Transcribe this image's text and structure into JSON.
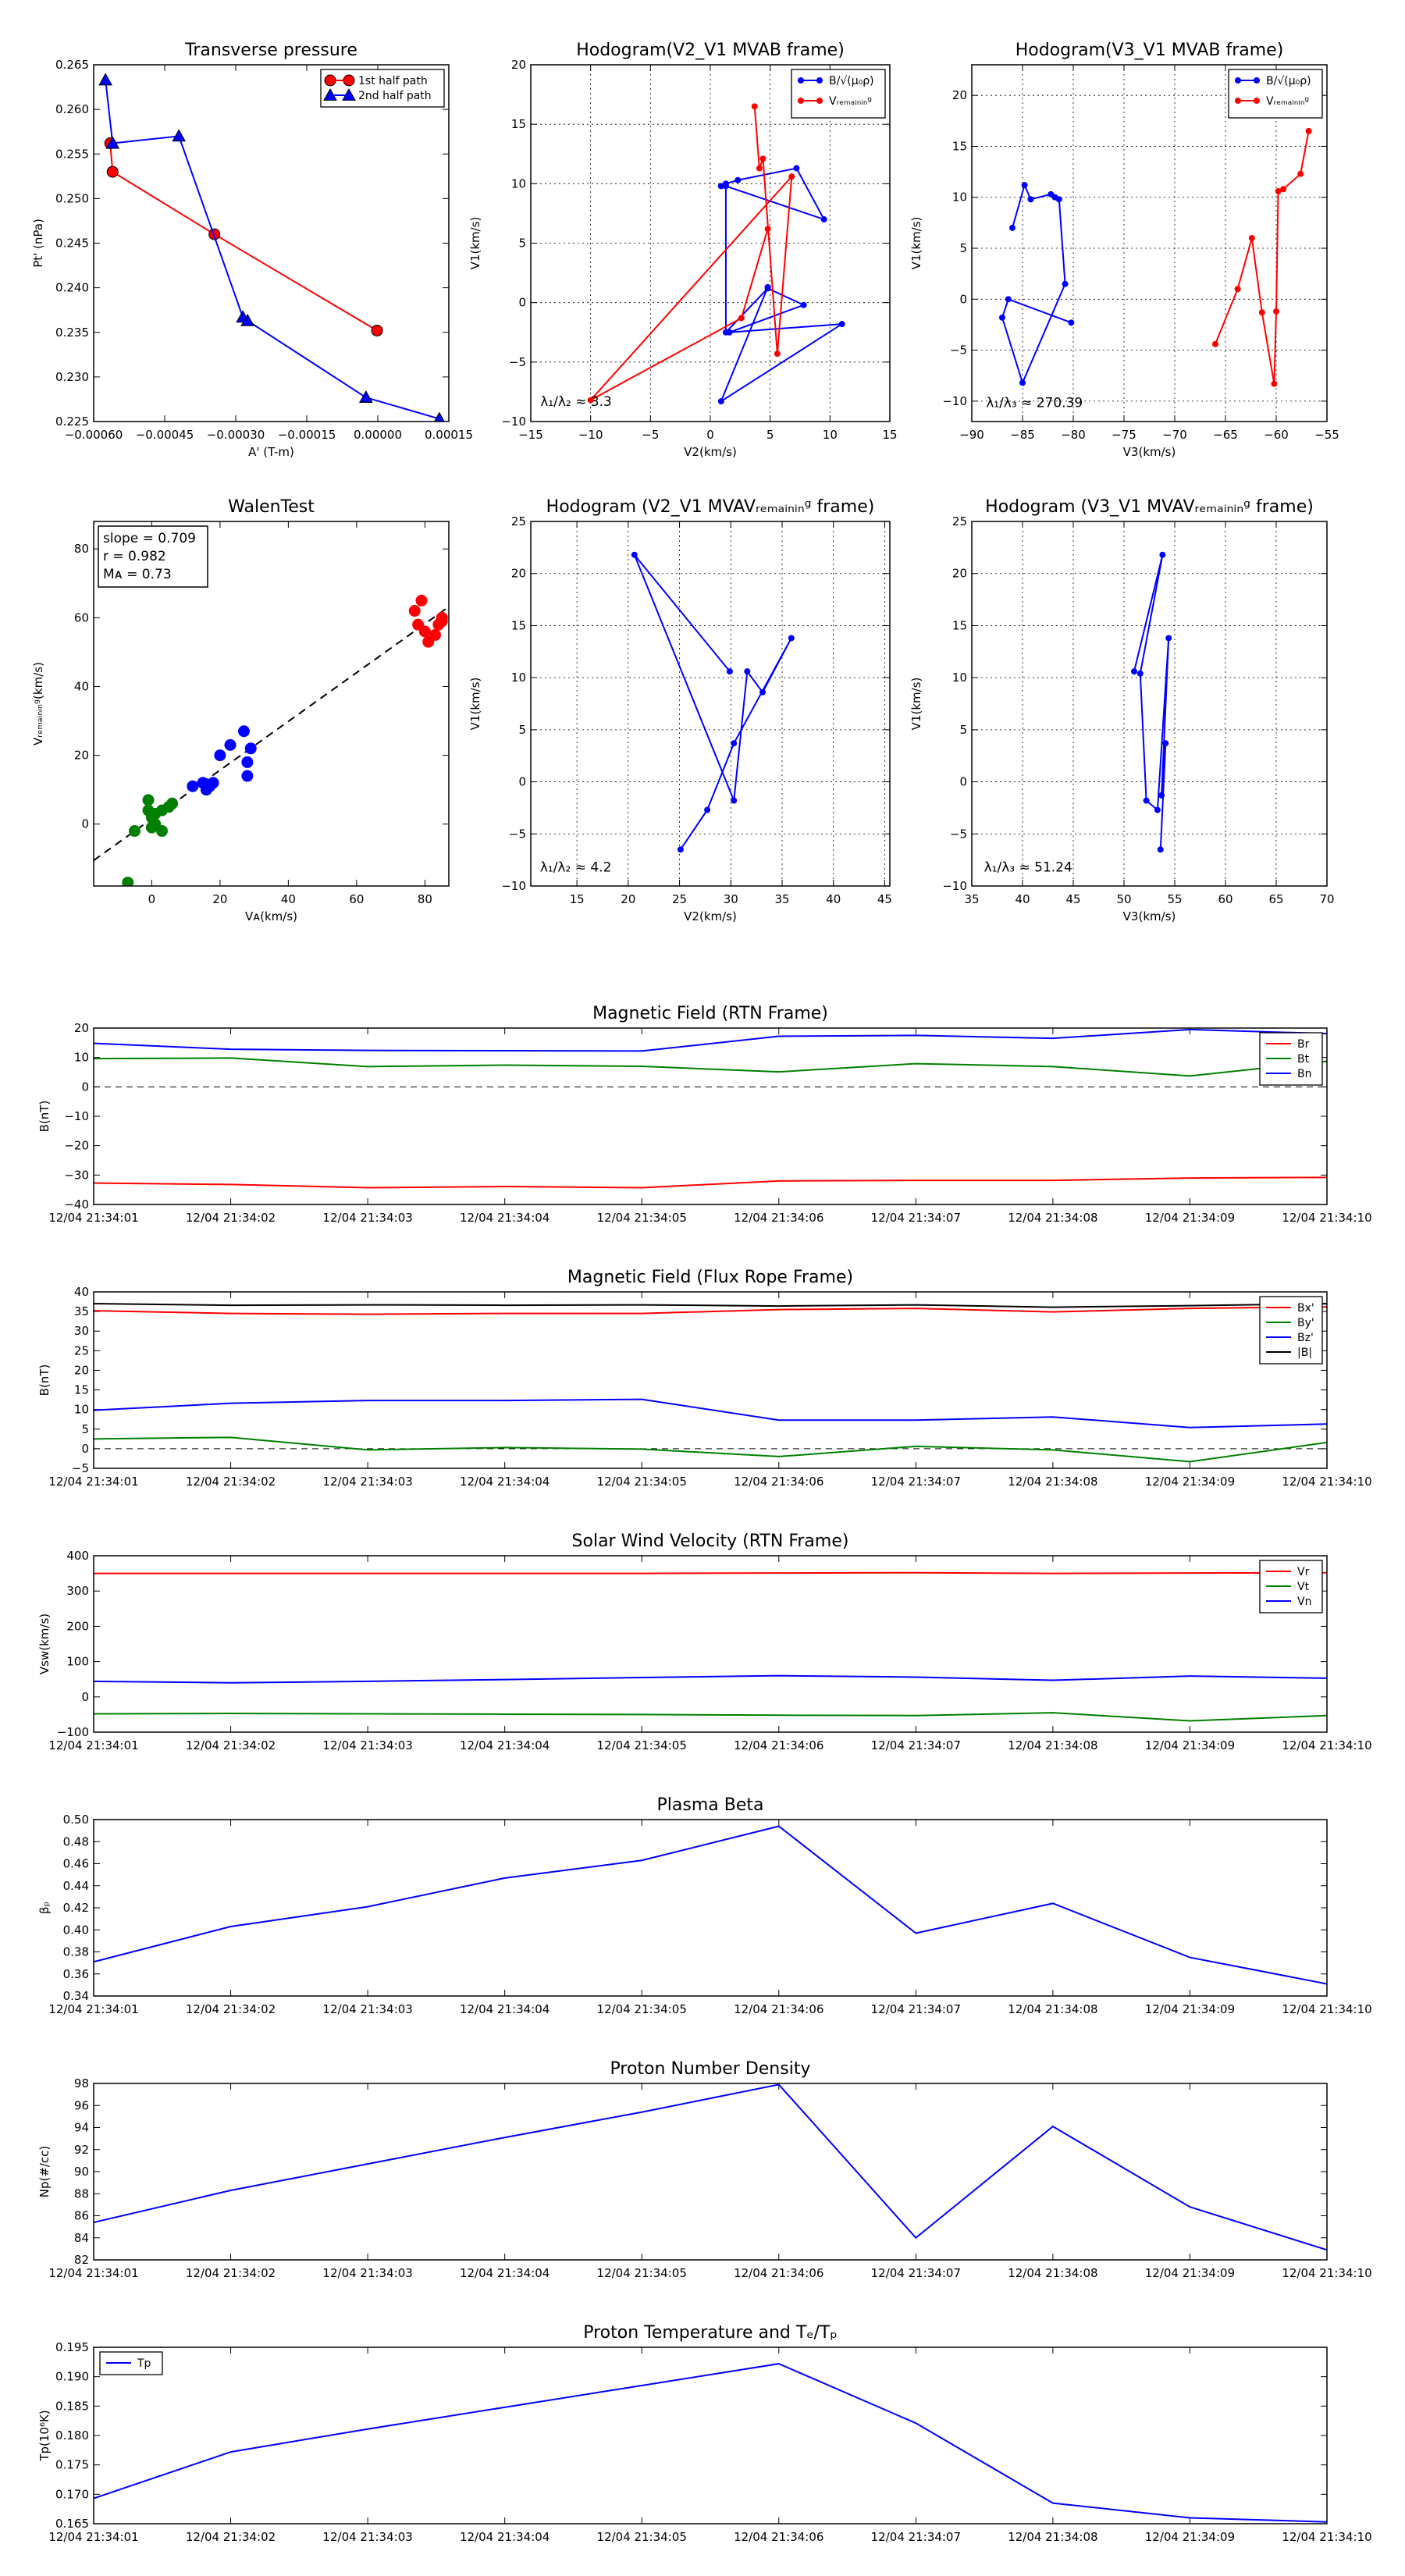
{
  "times": [
    "12/04 21:34:01",
    "12/04 21:34:02",
    "12/04 21:34:03",
    "12/04 21:34:04",
    "12/04 21:34:05",
    "12/04 21:34:06",
    "12/04 21:34:07",
    "12/04 21:34:08",
    "12/04 21:34:09",
    "12/04 21:34:10"
  ],
  "colors": {
    "red": "#ff0000",
    "green": "#008000",
    "blue": "#0000ff",
    "black": "#000000",
    "redfill": "#ee2222"
  },
  "chart_data": [
    {
      "id": "pt",
      "type": "line",
      "title": "Transverse pressure",
      "xlabel": "A' (T-m)",
      "ylabel": "Pt' (nPa)",
      "xlim": [
        -0.0006,
        0.00015
      ],
      "ylim": [
        0.225,
        0.265
      ],
      "xticks": [
        -0.0006,
        -0.00045,
        -0.0003,
        -0.00015,
        0.0,
        0.00015
      ],
      "xticklabels": [
        "−0.00060",
        "−0.00045",
        "−0.00030",
        "−0.00015",
        "0.00000",
        "0.00015"
      ],
      "yticks": [
        0.225,
        0.23,
        0.235,
        0.24,
        0.245,
        0.25,
        0.255,
        0.26,
        0.265
      ],
      "yticklabels": [
        "0.225",
        "0.230",
        "0.235",
        "0.240",
        "0.245",
        "0.250",
        "0.255",
        "0.260",
        "0.265"
      ],
      "grid": false,
      "legend_position": "top-right",
      "series": [
        {
          "name": "1st half path",
          "color": "#ff0000",
          "marker": "circle",
          "x": [
            -0.000565,
            -0.00056,
            -0.000345,
            -1.5e-06
          ],
          "y": [
            0.2562,
            0.253,
            0.246,
            0.2352
          ]
        },
        {
          "name": "2nd half path",
          "color": "#0000ff",
          "marker": "triangle",
          "x": [
            -0.000575,
            -0.00056,
            -0.00042,
            -0.000285,
            -0.000275,
            -2.5e-05,
            0.00013
          ],
          "y": [
            0.2633,
            0.2562,
            0.257,
            0.2367,
            0.2363,
            0.2277,
            0.2253
          ]
        }
      ]
    },
    {
      "id": "h1",
      "type": "line",
      "title": "Hodogram(V2_V1 MVAB frame)",
      "xlabel": "V2(km/s)",
      "ylabel": "V1(km/s)",
      "xlim": [
        -15,
        15
      ],
      "ylim": [
        -10,
        20
      ],
      "xticks": [
        -15,
        -10,
        -5,
        0,
        5,
        10,
        15
      ],
      "xticklabels": [
        "−15",
        "−10",
        "−5",
        "0",
        "5",
        "10",
        "15"
      ],
      "yticks": [
        -10,
        -5,
        0,
        5,
        10,
        15,
        20
      ],
      "yticklabels": [
        "−10",
        "−5",
        "0",
        "5",
        "10",
        "15",
        "20"
      ],
      "grid": true,
      "legend_position": "top-right",
      "annotation": {
        "text": "λ₁/λ₂ ≈ 3.3",
        "x": -14.2,
        "y": -8.7
      },
      "series": [
        {
          "name": "B/√(μ₀ρ)",
          "color": "#0000ff",
          "marker": "dot",
          "x": [
            0.9,
            1.3,
            2.3,
            7.2,
            9.5,
            1.3,
            1.3,
            4.8,
            7.8,
            1.6,
            11.0,
            0.9,
            4.8
          ],
          "y": [
            9.8,
            10.0,
            10.3,
            11.3,
            7.0,
            9.8,
            -2.5,
            1.2,
            -0.2,
            -2.5,
            -1.8,
            -8.3,
            1.3
          ]
        },
        {
          "name": "Vᵣₑₘₐᵢₙᵢₙᵍ",
          "color": "#ff0000",
          "marker": "dot",
          "x": [
            3.7,
            4.1,
            4.4,
            5.6,
            6.8,
            -10.0,
            2.6,
            4.8
          ],
          "y": [
            16.5,
            11.3,
            12.1,
            -4.3,
            10.6,
            -8.2,
            -1.3,
            6.2
          ]
        }
      ]
    },
    {
      "id": "h2",
      "type": "line",
      "title": "Hodogram(V3_V1 MVAB frame)",
      "xlabel": "V3(km/s)",
      "ylabel": "V1(km/s)",
      "xlim": [
        -90,
        -55
      ],
      "ylim": [
        -12,
        23
      ],
      "xticks": [
        -90,
        -85,
        -80,
        -75,
        -70,
        -65,
        -60,
        -55
      ],
      "xticklabels": [
        "−90",
        "−85",
        "−80",
        "−75",
        "−70",
        "−65",
        "−60",
        "−55"
      ],
      "yticks": [
        -10,
        -5,
        0,
        5,
        10,
        15,
        20
      ],
      "yticklabels": [
        "−10",
        "−5",
        "0",
        "5",
        "10",
        "15",
        "20"
      ],
      "grid": true,
      "legend_position": "top-right",
      "annotation": {
        "text": "λ₁/λ₃ ≈ 270.39",
        "x": -88.6,
        "y": -10.6
      },
      "series": [
        {
          "name": "B/√(μ₀ρ)",
          "color": "#0000ff",
          "marker": "dot",
          "x": [
            -86.0,
            -84.8,
            -84.2,
            -82.2,
            -81.8,
            -81.4,
            -80.8,
            -85.0,
            -87.0,
            -86.4,
            -80.2
          ],
          "y": [
            7.0,
            11.2,
            9.8,
            10.3,
            10.0,
            9.8,
            1.5,
            -8.2,
            -1.8,
            0.0,
            -2.3
          ]
        },
        {
          "name": "Vᵣₑₘₐᵢₙᵢₙᵍ",
          "color": "#ff0000",
          "marker": "dot",
          "x": [
            -56.8,
            -57.6,
            -59.3,
            -59.8,
            -60.0,
            -60.2,
            -61.4,
            -62.4,
            -63.8,
            -66.0
          ],
          "y": [
            16.5,
            12.3,
            10.8,
            10.6,
            -1.2,
            -8.3,
            -1.3,
            6.0,
            1.0,
            -4.4
          ]
        }
      ]
    },
    {
      "id": "wt",
      "type": "scatter",
      "title": "WalenTest",
      "xlabel": "Vᴀ(km/s)",
      "ylabel": "Vᵣₑₘₐᵢₙᵢₙᵍ(km/s)",
      "xlim": [
        -17,
        87
      ],
      "ylim": [
        -18,
        88
      ],
      "xticks": [
        0,
        20,
        40,
        60,
        80
      ],
      "xticklabels": [
        "0",
        "20",
        "40",
        "60",
        "80"
      ],
      "yticks": [
        0,
        20,
        40,
        60,
        80
      ],
      "yticklabels": [
        "0",
        "20",
        "40",
        "60",
        "80"
      ],
      "grid": false,
      "stats": [
        "slope = 0.709",
        "r = 0.982",
        "Mᴀ = 0.73"
      ],
      "fit": {
        "slope": 0.709,
        "intercept": 1.5
      },
      "series": [
        {
          "color": "#008000",
          "x": [
            -7,
            -5,
            -1,
            -1,
            0,
            0,
            1,
            1,
            3,
            3,
            5,
            6
          ],
          "y": [
            -17,
            -2,
            7,
            4,
            2,
            -1,
            0,
            3,
            -2,
            4,
            5,
            6
          ]
        },
        {
          "color": "#0000ff",
          "x": [
            12,
            15,
            16,
            17,
            18,
            20,
            23,
            27,
            28,
            28,
            29
          ],
          "y": [
            11,
            12,
            10,
            11,
            12,
            20,
            23,
            27,
            18,
            14,
            22
          ]
        },
        {
          "color": "#ff0000",
          "x": [
            77,
            78,
            79,
            80,
            81,
            83,
            84,
            85,
            85
          ],
          "y": [
            62,
            58,
            65,
            56,
            53,
            55,
            58,
            60,
            59
          ]
        }
      ]
    },
    {
      "id": "h3",
      "type": "line",
      "title": "Hodogram (V2_V1 MVAVᵣₑₘₐᵢₙᵢₙᵍ frame)",
      "xlabel": "V2(km/s)",
      "ylabel": "V1(km/s)",
      "xlim": [
        10.5,
        45.5
      ],
      "ylim": [
        -10,
        25
      ],
      "xticks": [
        15,
        20,
        25,
        30,
        35,
        40,
        45
      ],
      "xticklabels": [
        "15",
        "20",
        "25",
        "30",
        "35",
        "40",
        "45"
      ],
      "yticks": [
        -10,
        -5,
        0,
        5,
        10,
        15,
        20,
        25
      ],
      "yticklabels": [
        "−10",
        "−5",
        "0",
        "5",
        "10",
        "15",
        "20",
        "25"
      ],
      "grid": true,
      "legend_position": "none",
      "annotation": {
        "text": "λ₁/λ₂ ≈ 4.2",
        "x": 11.4,
        "y": -8.6
      },
      "series": [
        {
          "color": "#0000ff",
          "marker": "dot",
          "x": [
            29.9,
            20.6,
            30.3,
            31.6,
            33.1,
            35.9,
            30.3,
            27.7,
            25.1
          ],
          "y": [
            10.6,
            21.8,
            -1.8,
            10.6,
            8.6,
            13.8,
            3.7,
            -2.7,
            -6.5
          ]
        }
      ]
    },
    {
      "id": "h4",
      "type": "line",
      "title": "Hodogram (V3_V1 MVAVᵣₑₘₐᵢₙᵢₙᵍ frame)",
      "xlabel": "V3(km/s)",
      "ylabel": "V1(km/s)",
      "xlim": [
        35,
        70
      ],
      "ylim": [
        -10,
        25
      ],
      "xticks": [
        35,
        40,
        45,
        50,
        55,
        60,
        65,
        70
      ],
      "xticklabels": [
        "35",
        "40",
        "45",
        "50",
        "55",
        "60",
        "65",
        "70"
      ],
      "yticks": [
        -10,
        -5,
        0,
        5,
        10,
        15,
        20,
        25
      ],
      "yticklabels": [
        "−10",
        "−5",
        "0",
        "5",
        "10",
        "15",
        "20",
        "25"
      ],
      "grid": true,
      "legend_position": "none",
      "annotation": {
        "text": "λ₁/λ₃ ≈ 51.24",
        "x": 36.2,
        "y": -8.6
      },
      "series": [
        {
          "color": "#0000ff",
          "marker": "dot",
          "x": [
            51.0,
            53.8,
            51.6,
            52.2,
            53.3,
            54.4,
            53.7,
            54.1,
            53.6
          ],
          "y": [
            10.6,
            21.8,
            10.4,
            -1.8,
            -2.7,
            13.8,
            -1.3,
            3.7,
            -6.5
          ]
        }
      ]
    },
    {
      "id": "brtn",
      "type": "line",
      "title": "Magnetic Field (RTN Frame)",
      "xlabel": "",
      "ylabel": "B(nT)",
      "ylim": [
        -40,
        20
      ],
      "yticks": [
        -40,
        -30,
        -20,
        -10,
        0,
        10,
        20
      ],
      "yticklabels": [
        "−40",
        "−30",
        "−20",
        "−10",
        "0",
        "10",
        "20"
      ],
      "grid": false,
      "zero_line": true,
      "legend_position": "top-right",
      "series": [
        {
          "name": "Br",
          "color": "#ff0000",
          "values": [
            -32.7,
            -33.2,
            -34.3,
            -33.9,
            -34.3,
            -32.0,
            -31.8,
            -31.8,
            -31.0,
            -30.8
          ]
        },
        {
          "name": "Bt",
          "color": "#008000",
          "values": [
            9.6,
            9.8,
            6.9,
            7.4,
            7.0,
            5.1,
            7.9,
            6.9,
            3.7,
            8.7
          ]
        },
        {
          "name": "Bn",
          "color": "#0000ff",
          "values": [
            14.8,
            12.8,
            12.4,
            12.3,
            12.2,
            17.2,
            17.5,
            16.5,
            19.5,
            18.1
          ]
        }
      ]
    },
    {
      "id": "bfr",
      "type": "line",
      "title": "Magnetic Field (Flux Rope Frame)",
      "xlabel": "",
      "ylabel": "B(nT)",
      "ylim": [
        -5,
        40
      ],
      "yticks": [
        -5,
        0,
        5,
        10,
        15,
        20,
        25,
        30,
        35,
        40
      ],
      "yticklabels": [
        "−5",
        "0",
        "5",
        "10",
        "15",
        "20",
        "25",
        "30",
        "35",
        "40"
      ],
      "grid": false,
      "zero_line": true,
      "legend_position": "top-right",
      "series": [
        {
          "name": "Bx'",
          "color": "#ff0000",
          "values": [
            35.2,
            34.5,
            34.3,
            34.5,
            34.5,
            35.5,
            35.8,
            34.9,
            35.8,
            36.2
          ]
        },
        {
          "name": "By'",
          "color": "#008000",
          "values": [
            2.5,
            2.9,
            -0.3,
            0.3,
            -0.1,
            -2.0,
            0.6,
            -0.3,
            -3.3,
            1.6
          ]
        },
        {
          "name": "Bz'",
          "color": "#0000ff",
          "values": [
            9.8,
            11.6,
            12.3,
            12.3,
            12.6,
            7.3,
            7.3,
            8.1,
            5.4,
            6.3
          ]
        },
        {
          "name": "|B|",
          "color": "#000000",
          "values": [
            37.0,
            36.6,
            36.7,
            36.6,
            36.7,
            36.4,
            36.7,
            36.1,
            36.5,
            37.0
          ]
        }
      ]
    },
    {
      "id": "vsw",
      "type": "line",
      "title": "Solar Wind Velocity (RTN Frame)",
      "xlabel": "",
      "ylabel": "Vsw(km/s)",
      "ylim": [
        -100,
        400
      ],
      "yticks": [
        -100,
        0,
        100,
        200,
        300,
        400
      ],
      "yticklabels": [
        "−100",
        "0",
        "100",
        "200",
        "300",
        "400"
      ],
      "grid": false,
      "legend_position": "top-right",
      "series": [
        {
          "name": "Vr",
          "color": "#ff0000",
          "values": [
            350,
            350,
            350,
            350,
            350,
            351,
            352,
            350,
            351,
            352
          ]
        },
        {
          "name": "Vt",
          "color": "#008000",
          "values": [
            -48,
            -47,
            -48,
            -49,
            -50,
            -52,
            -53,
            -45,
            -68,
            -53
          ]
        },
        {
          "name": "Vn",
          "color": "#0000ff",
          "values": [
            44,
            40,
            44,
            49,
            55,
            60,
            56,
            47,
            59,
            53
          ]
        }
      ]
    },
    {
      "id": "beta",
      "type": "line",
      "title": "Plasma Beta",
      "xlabel": "",
      "ylabel": "βₚ",
      "ylim": [
        0.34,
        0.5
      ],
      "yticks": [
        0.34,
        0.36,
        0.38,
        0.4,
        0.42,
        0.44,
        0.46,
        0.48,
        0.5
      ],
      "yticklabels": [
        "0.34",
        "0.36",
        "0.38",
        "0.40",
        "0.42",
        "0.44",
        "0.46",
        "0.48",
        "0.50"
      ],
      "grid": false,
      "legend_position": "none",
      "series": [
        {
          "color": "#0000ff",
          "values": [
            0.371,
            0.403,
            0.421,
            0.447,
            0.463,
            0.494,
            0.397,
            0.424,
            0.375,
            0.351
          ]
        }
      ]
    },
    {
      "id": "np",
      "type": "line",
      "title": "Proton Number Density",
      "xlabel": "",
      "ylabel": "Np(#/cc)",
      "ylim": [
        82,
        98
      ],
      "yticks": [
        82,
        84,
        86,
        88,
        90,
        92,
        94,
        96,
        98
      ],
      "yticklabels": [
        "82",
        "84",
        "86",
        "88",
        "90",
        "92",
        "94",
        "96",
        "98"
      ],
      "grid": false,
      "legend_position": "none",
      "series": [
        {
          "color": "#0000ff",
          "values": [
            85.4,
            88.3,
            90.7,
            93.1,
            95.4,
            97.9,
            84.0,
            94.1,
            86.8,
            82.9
          ]
        }
      ]
    },
    {
      "id": "tp",
      "type": "line",
      "title": "Proton Temperature and Tₑ/Tₚ",
      "xlabel": "",
      "ylabel": "Tp(10⁶K)",
      "ylim": [
        0.165,
        0.195
      ],
      "yticks": [
        0.165,
        0.17,
        0.175,
        0.18,
        0.185,
        0.19,
        0.195
      ],
      "yticklabels": [
        "0.165",
        "0.170",
        "0.175",
        "0.180",
        "0.185",
        "0.190",
        "0.195"
      ],
      "grid": false,
      "legend_position": "top-left",
      "series": [
        {
          "name": "Tp",
          "color": "#0000ff",
          "values": [
            0.1693,
            0.1772,
            0.1811,
            0.1848,
            0.1885,
            0.1922,
            0.1821,
            0.1685,
            0.166,
            0.1653
          ]
        }
      ]
    }
  ]
}
